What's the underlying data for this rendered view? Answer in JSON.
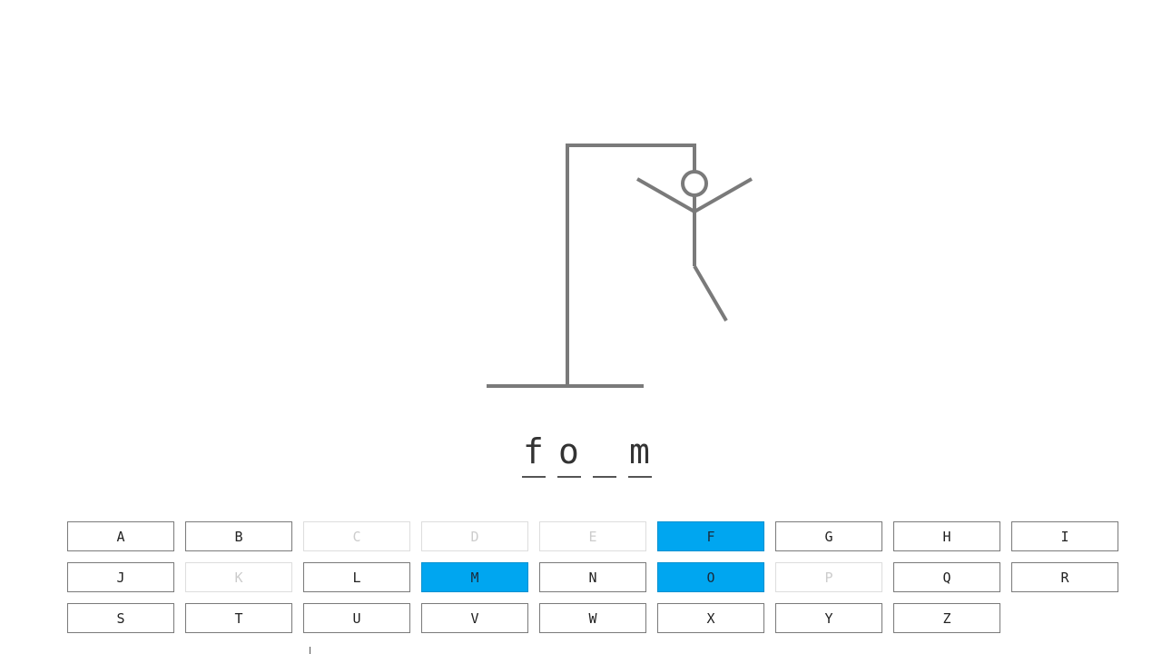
{
  "game": {
    "word_slots": [
      "f",
      "o",
      "",
      "m"
    ],
    "wrong_guesses": 4,
    "keys": [
      {
        "letter": "A",
        "state": "available"
      },
      {
        "letter": "B",
        "state": "available"
      },
      {
        "letter": "C",
        "state": "used"
      },
      {
        "letter": "D",
        "state": "used"
      },
      {
        "letter": "E",
        "state": "used"
      },
      {
        "letter": "F",
        "state": "selected"
      },
      {
        "letter": "G",
        "state": "available"
      },
      {
        "letter": "H",
        "state": "available"
      },
      {
        "letter": "I",
        "state": "available"
      },
      {
        "letter": "J",
        "state": "available"
      },
      {
        "letter": "K",
        "state": "used"
      },
      {
        "letter": "L",
        "state": "available"
      },
      {
        "letter": "M",
        "state": "selected"
      },
      {
        "letter": "N",
        "state": "available"
      },
      {
        "letter": "O",
        "state": "selected"
      },
      {
        "letter": "P",
        "state": "used"
      },
      {
        "letter": "Q",
        "state": "available"
      },
      {
        "letter": "R",
        "state": "available"
      },
      {
        "letter": "S",
        "state": "available"
      },
      {
        "letter": "T",
        "state": "available"
      },
      {
        "letter": "U",
        "state": "available"
      },
      {
        "letter": "V",
        "state": "available"
      },
      {
        "letter": "W",
        "state": "available"
      },
      {
        "letter": "X",
        "state": "available"
      },
      {
        "letter": "Y",
        "state": "available"
      },
      {
        "letter": "Z",
        "state": "available"
      }
    ]
  },
  "colors": {
    "drawing": "#7a7a7a",
    "selected_key": "#00a6f0",
    "used_key_text": "#cccccc"
  }
}
